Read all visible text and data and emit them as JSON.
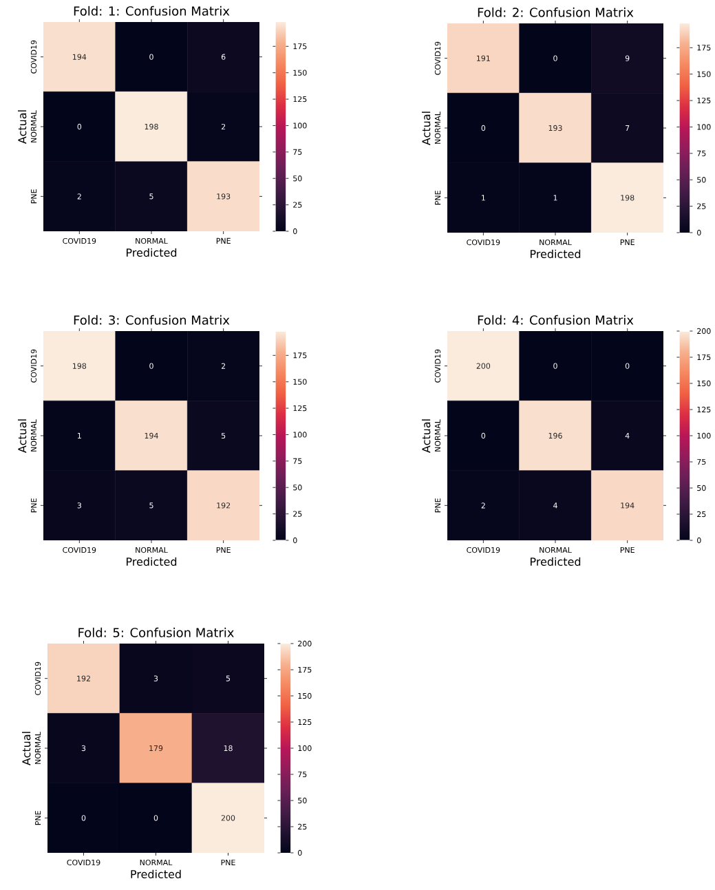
{
  "chart_data": [
    {
      "type": "heatmap",
      "title": "Fold: 1: Confusion Matrix",
      "xlabel": "Predicted",
      "ylabel": "Actual",
      "categories": [
        "COVID19",
        "NORMAL",
        "PNE"
      ],
      "y_categories": [
        "COVID19",
        "NORMAL",
        "PNE"
      ],
      "cells": [
        [
          194,
          0,
          6
        ],
        [
          0,
          198,
          2
        ],
        [
          2,
          5,
          193
        ]
      ],
      "clim": [
        0,
        198
      ],
      "cticks": [
        0,
        25,
        50,
        75,
        100,
        125,
        150,
        175
      ],
      "data_labels": true
    },
    {
      "type": "heatmap",
      "title": "Fold: 2: Confusion Matrix",
      "xlabel": "Predicted",
      "ylabel": "Actual",
      "categories": [
        "COVID19",
        "NORMAL",
        "PNE"
      ],
      "y_categories": [
        "COVID19",
        "NORMAL",
        "PNE"
      ],
      "cells": [
        [
          191,
          0,
          9
        ],
        [
          0,
          193,
          7
        ],
        [
          1,
          1,
          198
        ]
      ],
      "clim": [
        0,
        198
      ],
      "cticks": [
        0,
        25,
        50,
        75,
        100,
        125,
        150,
        175
      ],
      "data_labels": true
    },
    {
      "type": "heatmap",
      "title": "Fold: 3: Confusion Matrix",
      "xlabel": "Predicted",
      "ylabel": "Actual",
      "categories": [
        "COVID19",
        "NORMAL",
        "PNE"
      ],
      "y_categories": [
        "COVID19",
        "NORMAL",
        "PNE"
      ],
      "cells": [
        [
          198,
          0,
          2
        ],
        [
          1,
          194,
          5
        ],
        [
          3,
          5,
          192
        ]
      ],
      "clim": [
        0,
        198
      ],
      "cticks": [
        0,
        25,
        50,
        75,
        100,
        125,
        150,
        175
      ],
      "data_labels": true
    },
    {
      "type": "heatmap",
      "title": "Fold: 4: Confusion Matrix",
      "xlabel": "Predicted",
      "ylabel": "Actual",
      "categories": [
        "COVID19",
        "NORMAL",
        "PNE"
      ],
      "y_categories": [
        "COVID19",
        "NORMAL",
        "PNE"
      ],
      "cells": [
        [
          200,
          0,
          0
        ],
        [
          0,
          196,
          4
        ],
        [
          2,
          4,
          194
        ]
      ],
      "clim": [
        0,
        200
      ],
      "cticks": [
        0,
        25,
        50,
        75,
        100,
        125,
        150,
        175,
        200
      ],
      "data_labels": true
    },
    {
      "type": "heatmap",
      "title": "Fold: 5: Confusion Matrix",
      "xlabel": "Predicted",
      "ylabel": "Actual",
      "categories": [
        "COVID19",
        "NORMAL",
        "PNE"
      ],
      "y_categories": [
        "COVID19",
        "NORMAL",
        "PNE"
      ],
      "cells": [
        [
          192,
          3,
          5
        ],
        [
          3,
          179,
          18
        ],
        [
          0,
          0,
          200
        ]
      ],
      "clim": [
        0,
        200
      ],
      "cticks": [
        0,
        25,
        50,
        75,
        100,
        125,
        150,
        175,
        200
      ],
      "data_labels": true
    }
  ]
}
